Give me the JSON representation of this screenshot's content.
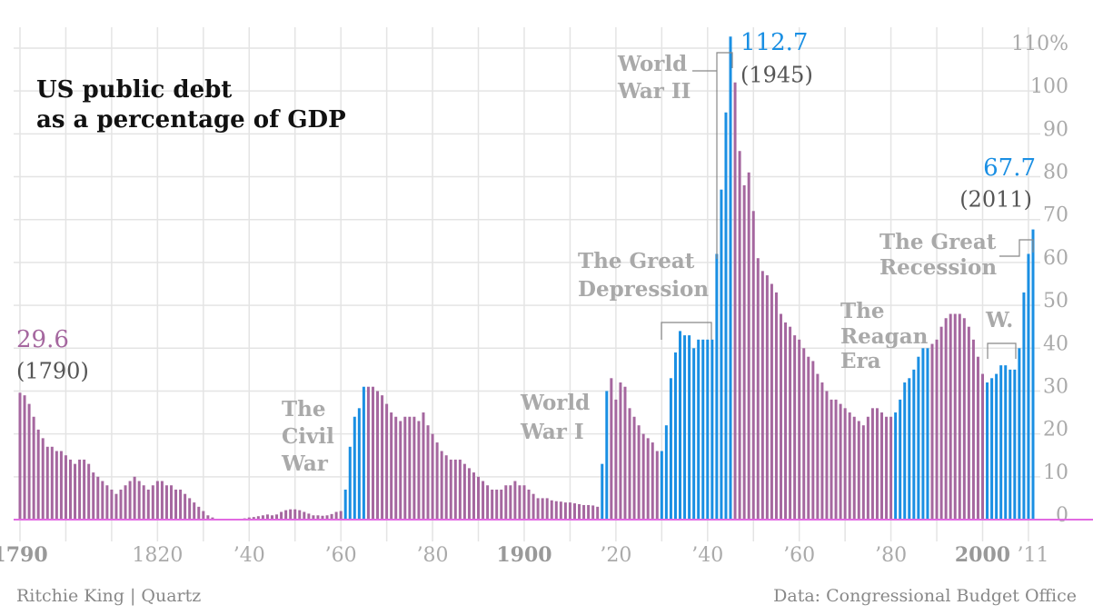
{
  "chart_data": {
    "type": "bar",
    "title": [
      "US public debt",
      "as a percentage of GDP"
    ],
    "source_left": "Ritchie King | Quartz",
    "source_right": "Data: Congressional Budget Office",
    "x": [
      1790,
      1791,
      1792,
      1793,
      1794,
      1795,
      1796,
      1797,
      1798,
      1799,
      1800,
      1801,
      1802,
      1803,
      1804,
      1805,
      1806,
      1807,
      1808,
      1809,
      1810,
      1811,
      1812,
      1813,
      1814,
      1815,
      1816,
      1817,
      1818,
      1819,
      1820,
      1821,
      1822,
      1823,
      1824,
      1825,
      1826,
      1827,
      1828,
      1829,
      1830,
      1831,
      1832,
      1833,
      1834,
      1835,
      1836,
      1837,
      1838,
      1839,
      1840,
      1841,
      1842,
      1843,
      1844,
      1845,
      1846,
      1847,
      1848,
      1849,
      1850,
      1851,
      1852,
      1853,
      1854,
      1855,
      1856,
      1857,
      1858,
      1859,
      1860,
      1861,
      1862,
      1863,
      1864,
      1865,
      1866,
      1867,
      1868,
      1869,
      1870,
      1871,
      1872,
      1873,
      1874,
      1875,
      1876,
      1877,
      1878,
      1879,
      1880,
      1881,
      1882,
      1883,
      1884,
      1885,
      1886,
      1887,
      1888,
      1889,
      1890,
      1891,
      1892,
      1893,
      1894,
      1895,
      1896,
      1897,
      1898,
      1899,
      1900,
      1901,
      1902,
      1903,
      1904,
      1905,
      1906,
      1907,
      1908,
      1909,
      1910,
      1911,
      1912,
      1913,
      1914,
      1915,
      1916,
      1917,
      1918,
      1919,
      1920,
      1921,
      1922,
      1923,
      1924,
      1925,
      1926,
      1927,
      1928,
      1929,
      1930,
      1931,
      1932,
      1933,
      1934,
      1935,
      1936,
      1937,
      1938,
      1939,
      1940,
      1941,
      1942,
      1943,
      1944,
      1945,
      1946,
      1947,
      1948,
      1949,
      1950,
      1951,
      1952,
      1953,
      1954,
      1955,
      1956,
      1957,
      1958,
      1959,
      1960,
      1961,
      1962,
      1963,
      1964,
      1965,
      1966,
      1967,
      1968,
      1969,
      1970,
      1971,
      1972,
      1973,
      1974,
      1975,
      1976,
      1977,
      1978,
      1979,
      1980,
      1981,
      1982,
      1983,
      1984,
      1985,
      1986,
      1987,
      1988,
      1989,
      1990,
      1991,
      1992,
      1993,
      1994,
      1995,
      1996,
      1997,
      1998,
      1999,
      2000,
      2001,
      2002,
      2003,
      2004,
      2005,
      2006,
      2007,
      2008,
      2009,
      2010,
      2011
    ],
    "values": [
      29.6,
      29,
      27,
      24,
      21,
      19,
      17,
      17,
      16,
      16,
      15,
      14,
      13,
      14,
      14,
      13,
      11,
      10,
      9,
      8,
      7,
      6,
      7,
      8,
      9,
      10,
      9,
      8,
      7,
      8,
      9,
      9,
      8,
      8,
      7,
      7,
      6,
      5,
      4,
      3,
      2,
      1,
      0.5,
      0.2,
      0.1,
      0,
      0,
      0.1,
      0.2,
      0.3,
      0.5,
      0.6,
      0.8,
      1,
      1.2,
      1,
      1.2,
      1.8,
      2.2,
      2.4,
      2.4,
      2.2,
      1.8,
      1.4,
      1,
      1,
      0.9,
      1,
      1.3,
      1.8,
      2,
      7,
      17,
      24,
      26,
      31,
      31,
      31,
      30,
      29,
      27,
      25,
      24,
      23,
      24,
      24,
      24,
      23,
      25,
      22,
      20,
      18,
      16,
      15,
      14,
      14,
      14,
      13,
      12,
      11,
      10,
      9,
      8,
      7,
      7,
      7,
      8,
      8,
      9,
      8,
      8,
      7,
      6,
      5,
      5,
      5,
      4.5,
      4.3,
      4.2,
      4,
      4,
      3.8,
      3.6,
      3.4,
      3.4,
      3.3,
      3,
      13,
      30,
      33,
      28,
      32,
      31,
      26,
      24,
      22,
      20,
      19,
      18,
      16,
      16,
      22,
      33,
      39,
      44,
      43,
      43,
      40,
      42,
      42,
      42,
      42,
      62,
      77,
      95,
      112.7,
      102,
      86,
      78,
      81,
      72,
      61,
      58,
      57,
      55,
      53,
      48,
      46,
      45,
      43,
      42,
      40,
      38,
      37,
      34,
      32,
      30,
      28,
      28,
      27,
      26,
      25,
      24,
      23,
      22,
      24,
      26,
      26,
      25,
      24,
      24,
      25,
      28,
      32,
      33,
      35,
      38,
      40,
      40,
      41,
      42,
      45,
      47,
      48,
      48,
      48,
      47,
      45,
      42,
      38,
      34,
      32,
      33,
      34,
      36,
      36,
      35,
      35,
      40,
      53,
      62,
      67.7
    ],
    "colors": [
      "#a5679f",
      "#a5679f",
      "#a5679f",
      "#a5679f",
      "#a5679f",
      "#a5679f",
      "#a5679f",
      "#a5679f",
      "#a5679f",
      "#a5679f",
      "#a5679f",
      "#a5679f",
      "#a5679f",
      "#a5679f",
      "#a5679f",
      "#a5679f",
      "#a5679f",
      "#a5679f",
      "#a5679f",
      "#a5679f",
      "#a5679f",
      "#a5679f",
      "#a5679f",
      "#a5679f",
      "#a5679f",
      "#a5679f",
      "#a5679f",
      "#a5679f",
      "#a5679f",
      "#a5679f",
      "#a5679f",
      "#a5679f",
      "#a5679f",
      "#a5679f",
      "#a5679f",
      "#a5679f",
      "#a5679f",
      "#a5679f",
      "#a5679f",
      "#a5679f",
      "#a5679f",
      "#a5679f",
      "#a5679f",
      "#a5679f",
      "#a5679f",
      "#a5679f",
      "#a5679f",
      "#a5679f",
      "#a5679f",
      "#a5679f",
      "#a5679f",
      "#a5679f",
      "#a5679f",
      "#a5679f",
      "#a5679f",
      "#a5679f",
      "#a5679f",
      "#a5679f",
      "#a5679f",
      "#a5679f",
      "#a5679f",
      "#a5679f",
      "#a5679f",
      "#a5679f",
      "#a5679f",
      "#a5679f",
      "#a5679f",
      "#a5679f",
      "#a5679f",
      "#a5679f",
      "#a5679f",
      "#1a8fe3",
      "#1a8fe3",
      "#1a8fe3",
      "#1a8fe3",
      "#1a8fe3",
      "#a5679f",
      "#a5679f",
      "#a5679f",
      "#a5679f",
      "#a5679f",
      "#a5679f",
      "#a5679f",
      "#a5679f",
      "#a5679f",
      "#a5679f",
      "#a5679f",
      "#a5679f",
      "#a5679f",
      "#a5679f",
      "#a5679f",
      "#a5679f",
      "#a5679f",
      "#a5679f",
      "#a5679f",
      "#a5679f",
      "#a5679f",
      "#a5679f",
      "#a5679f",
      "#a5679f",
      "#a5679f",
      "#a5679f",
      "#a5679f",
      "#a5679f",
      "#a5679f",
      "#a5679f",
      "#a5679f",
      "#a5679f",
      "#a5679f",
      "#a5679f",
      "#a5679f",
      "#a5679f",
      "#a5679f",
      "#a5679f",
      "#a5679f",
      "#a5679f",
      "#a5679f",
      "#a5679f",
      "#a5679f",
      "#a5679f",
      "#a5679f",
      "#a5679f",
      "#a5679f",
      "#a5679f",
      "#a5679f",
      "#a5679f",
      "#a5679f",
      "#1a8fe3",
      "#1a8fe3",
      "#a5679f",
      "#a5679f",
      "#a5679f",
      "#a5679f",
      "#a5679f",
      "#a5679f",
      "#a5679f",
      "#a5679f",
      "#a5679f",
      "#a5679f",
      "#a5679f",
      "#1a8fe3",
      "#1a8fe3",
      "#1a8fe3",
      "#1a8fe3",
      "#1a8fe3",
      "#1a8fe3",
      "#1a8fe3",
      "#1a8fe3",
      "#1a8fe3",
      "#1a8fe3",
      "#1a8fe3",
      "#1a8fe3",
      "#1a8fe3",
      "#1a8fe3",
      "#1a8fe3",
      "#1a8fe3",
      "#a5679f",
      "#a5679f",
      "#a5679f",
      "#a5679f",
      "#a5679f",
      "#a5679f",
      "#a5679f",
      "#a5679f",
      "#a5679f",
      "#a5679f",
      "#a5679f",
      "#a5679f",
      "#a5679f",
      "#a5679f",
      "#a5679f",
      "#a5679f",
      "#a5679f",
      "#a5679f",
      "#a5679f",
      "#a5679f",
      "#a5679f",
      "#a5679f",
      "#a5679f",
      "#a5679f",
      "#a5679f",
      "#a5679f",
      "#a5679f",
      "#a5679f",
      "#a5679f",
      "#a5679f",
      "#a5679f",
      "#a5679f",
      "#a5679f",
      "#a5679f",
      "#a5679f",
      "#1a8fe3",
      "#1a8fe3",
      "#1a8fe3",
      "#1a8fe3",
      "#1a8fe3",
      "#1a8fe3",
      "#1a8fe3",
      "#1a8fe3",
      "#a5679f",
      "#a5679f",
      "#a5679f",
      "#a5679f",
      "#a5679f",
      "#a5679f",
      "#a5679f",
      "#a5679f",
      "#a5679f",
      "#a5679f",
      "#a5679f",
      "#a5679f",
      "#1a8fe3",
      "#1a8fe3",
      "#1a8fe3",
      "#1a8fe3",
      "#1a8fe3",
      "#1a8fe3",
      "#1a8fe3",
      "#1a8fe3",
      "#1a8fe3",
      "#1a8fe3",
      "#1a8fe3"
    ],
    "xlim": [
      1790,
      2011
    ],
    "xticks": [
      {
        "value": 1790,
        "label": "1790"
      },
      {
        "value": 1820,
        "label": "1820"
      },
      {
        "value": 1840,
        "label": "’40"
      },
      {
        "value": 1860,
        "label": "’60"
      },
      {
        "value": 1880,
        "label": "’80"
      },
      {
        "value": 1900,
        "label": "1900"
      },
      {
        "value": 1920,
        "label": "’20"
      },
      {
        "value": 1940,
        "label": "’40"
      },
      {
        "value": 1960,
        "label": "’60"
      },
      {
        "value": 1980,
        "label": "’80"
      },
      {
        "value": 2000,
        "label": "2000"
      },
      {
        "value": 2011,
        "label": "’11"
      }
    ],
    "ylim": [
      0,
      110
    ],
    "yticks": [
      0,
      10,
      20,
      30,
      40,
      50,
      60,
      70,
      80,
      90,
      100,
      {
        "value": 110,
        "label": "110%"
      }
    ],
    "grid": true,
    "annotations": [
      {
        "lines": [
          "(1790)"
        ]
      },
      {
        "lines": [
          "(1945)"
        ]
      },
      {
        "lines": [
          "(2011)"
        ]
      },
      {
        "lines": [
          "The",
          "Civil",
          "War"
        ]
      },
      {
        "lines": [
          "World",
          "War I"
        ]
      },
      {
        "lines": [
          "The Great",
          "Depression"
        ]
      },
      {
        "lines": [
          "World",
          "War II"
        ]
      },
      {
        "lines": [
          "The",
          "Reagan",
          "Era"
        ]
      },
      {
        "lines": [
          "W."
        ]
      },
      {
        "lines": [
          "The Great",
          "Recession"
        ]
      }
    ]
  }
}
